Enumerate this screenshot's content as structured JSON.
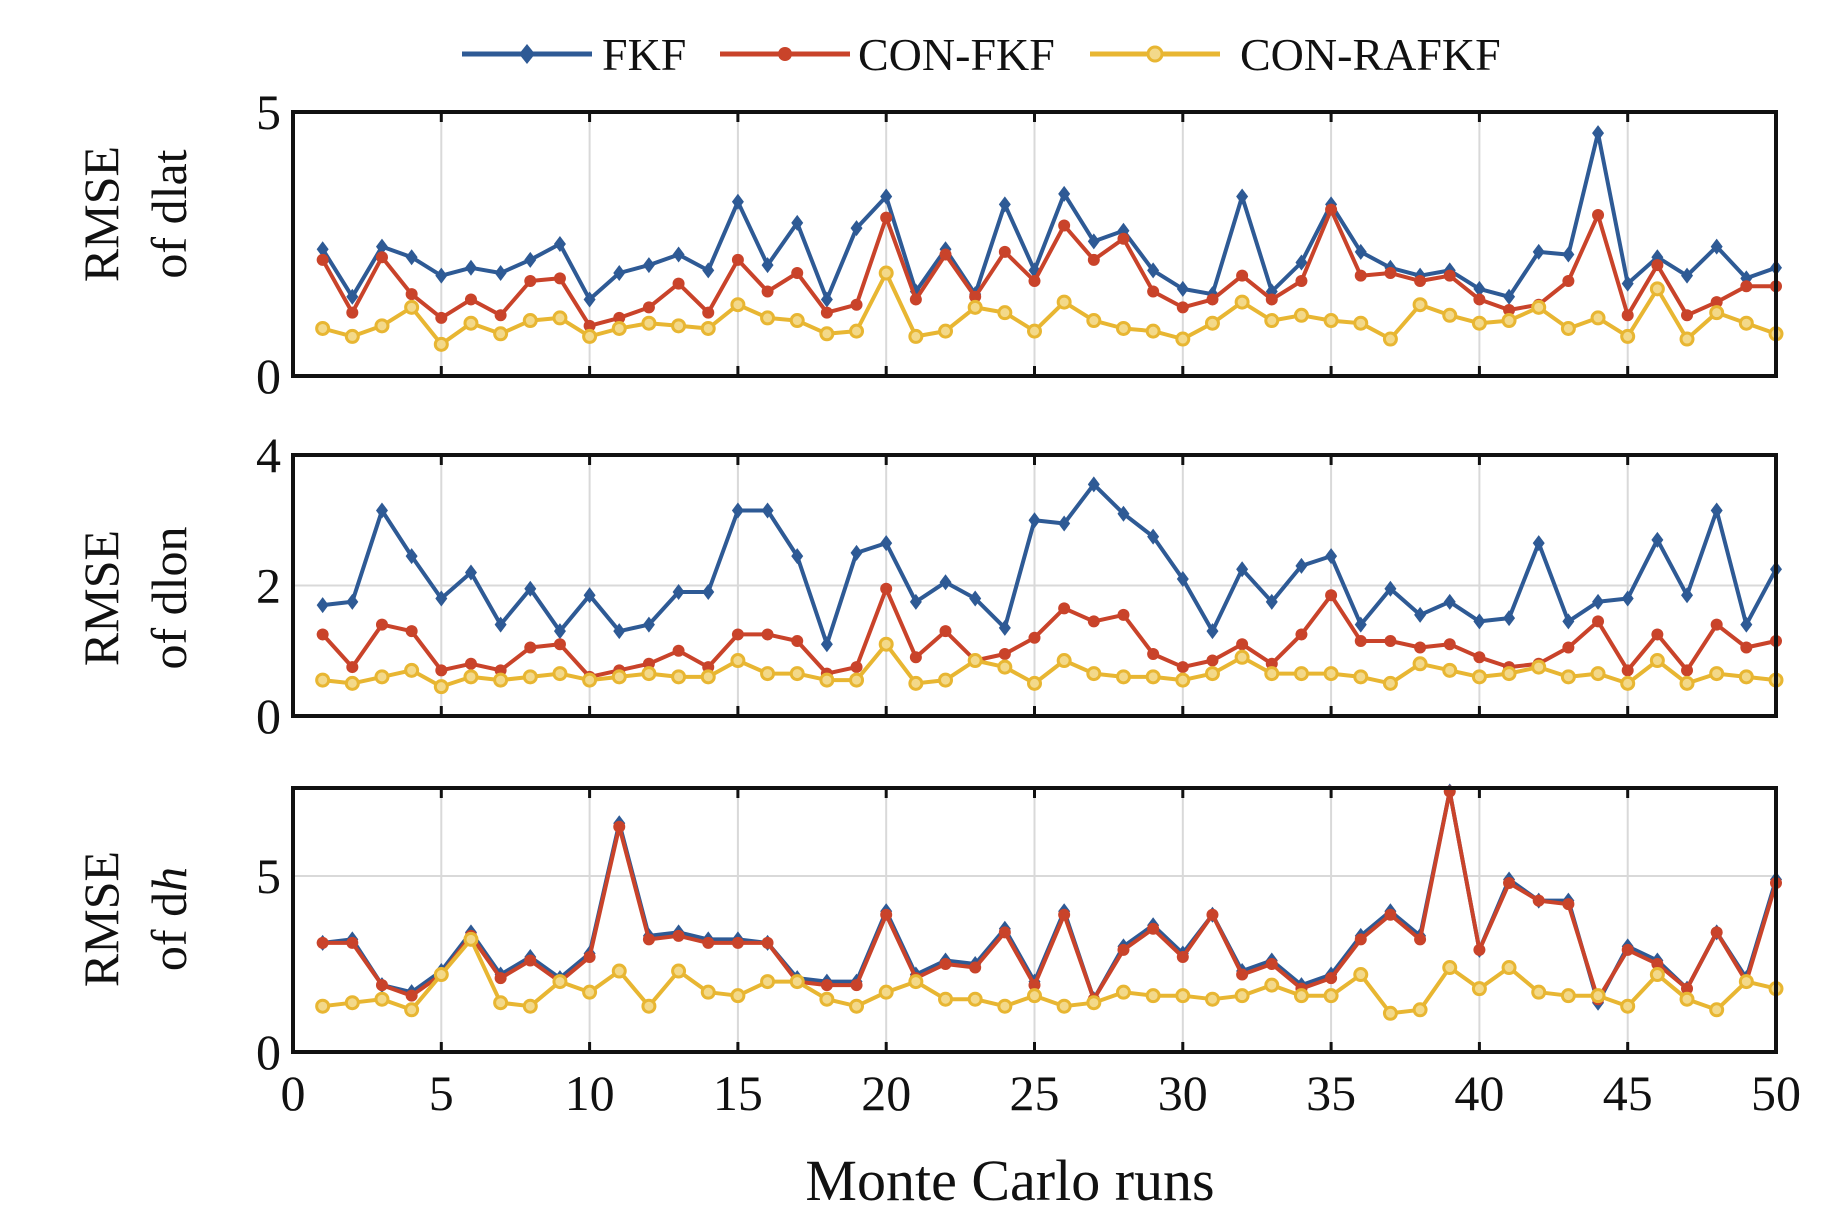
{
  "chart_data": [
    {
      "type": "line",
      "ylabel_line1": "RMSE",
      "ylabel_line2": "of dlat",
      "ylim": [
        0,
        5
      ],
      "yticks": [
        0,
        5
      ],
      "xlim": [
        0,
        50
      ],
      "series": [
        {
          "name": "FKF",
          "values": [
            2.4,
            1.5,
            2.45,
            2.25,
            1.9,
            2.05,
            1.95,
            2.2,
            2.5,
            1.45,
            1.95,
            2.1,
            2.3,
            2.0,
            3.3,
            2.1,
            2.9,
            1.45,
            2.8,
            3.4,
            1.6,
            2.4,
            1.55,
            3.25,
            2.0,
            3.45,
            2.55,
            2.75,
            2.0,
            1.65,
            1.55,
            3.4,
            1.6,
            2.15,
            3.25,
            2.35,
            2.05,
            1.9,
            2.0,
            1.65,
            1.5,
            2.35,
            2.3,
            4.6,
            1.75,
            2.25,
            1.9,
            2.45,
            1.85,
            2.05
          ]
        },
        {
          "name": "CON-FKF",
          "values": [
            2.2,
            1.2,
            2.25,
            1.55,
            1.1,
            1.45,
            1.15,
            1.8,
            1.85,
            0.95,
            1.1,
            1.3,
            1.75,
            1.2,
            2.2,
            1.6,
            1.95,
            1.2,
            1.35,
            3.0,
            1.45,
            2.3,
            1.5,
            2.35,
            1.8,
            2.85,
            2.2,
            2.6,
            1.6,
            1.3,
            1.45,
            1.9,
            1.45,
            1.8,
            3.15,
            1.9,
            1.95,
            1.8,
            1.9,
            1.45,
            1.25,
            1.35,
            1.8,
            3.05,
            1.15,
            2.1,
            1.15,
            1.4,
            1.7,
            1.7
          ]
        },
        {
          "name": "CON-RAFKF",
          "values": [
            0.9,
            0.75,
            0.95,
            1.3,
            0.6,
            1.0,
            0.8,
            1.05,
            1.1,
            0.75,
            0.9,
            1.0,
            0.95,
            0.9,
            1.35,
            1.1,
            1.05,
            0.8,
            0.85,
            1.95,
            0.75,
            0.85,
            1.3,
            1.2,
            0.85,
            1.4,
            1.05,
            0.9,
            0.85,
            0.7,
            1.0,
            1.4,
            1.05,
            1.15,
            1.05,
            1.0,
            0.7,
            1.35,
            1.15,
            1.0,
            1.05,
            1.3,
            0.9,
            1.1,
            0.75,
            1.65,
            0.7,
            1.2,
            1.0,
            0.8
          ]
        }
      ]
    },
    {
      "type": "line",
      "ylabel_line1": "RMSE",
      "ylabel_line2": "of dlon",
      "ylim": [
        0,
        4
      ],
      "yticks": [
        0,
        2,
        4
      ],
      "xlim": [
        0,
        50
      ],
      "series": [
        {
          "name": "FKF",
          "values": [
            1.7,
            1.75,
            3.15,
            2.45,
            1.8,
            2.2,
            1.4,
            1.95,
            1.3,
            1.85,
            1.3,
            1.4,
            1.9,
            1.9,
            3.15,
            3.15,
            2.45,
            1.1,
            2.5,
            2.65,
            1.75,
            2.05,
            1.8,
            1.35,
            3.0,
            2.95,
            3.55,
            3.1,
            2.75,
            2.1,
            1.3,
            2.25,
            1.75,
            2.3,
            2.45,
            1.4,
            1.95,
            1.55,
            1.75,
            1.45,
            1.5,
            2.65,
            1.45,
            1.75,
            1.8,
            2.7,
            1.85,
            3.15,
            1.4,
            2.25
          ]
        },
        {
          "name": "CON-FKF",
          "values": [
            1.25,
            0.75,
            1.4,
            1.3,
            0.7,
            0.8,
            0.7,
            1.05,
            1.1,
            0.6,
            0.7,
            0.8,
            1.0,
            0.75,
            1.25,
            1.25,
            1.15,
            0.65,
            0.75,
            1.95,
            0.9,
            1.3,
            0.85,
            0.95,
            1.2,
            1.65,
            1.45,
            1.55,
            0.95,
            0.75,
            0.85,
            1.1,
            0.8,
            1.25,
            1.85,
            1.15,
            1.15,
            1.05,
            1.1,
            0.9,
            0.75,
            0.8,
            1.05,
            1.45,
            0.7,
            1.25,
            0.7,
            1.4,
            1.05,
            1.15
          ]
        },
        {
          "name": "CON-RAFKF",
          "values": [
            0.55,
            0.5,
            0.6,
            0.7,
            0.45,
            0.6,
            0.55,
            0.6,
            0.65,
            0.55,
            0.6,
            0.65,
            0.6,
            0.6,
            0.85,
            0.65,
            0.65,
            0.55,
            0.55,
            1.1,
            0.5,
            0.55,
            0.85,
            0.75,
            0.5,
            0.85,
            0.65,
            0.6,
            0.6,
            0.55,
            0.65,
            0.9,
            0.65,
            0.65,
            0.65,
            0.6,
            0.5,
            0.8,
            0.7,
            0.6,
            0.65,
            0.75,
            0.6,
            0.65,
            0.5,
            0.85,
            0.5,
            0.65,
            0.6,
            0.55
          ]
        }
      ]
    },
    {
      "type": "line",
      "ylabel_line1": "RMSE",
      "ylabel_line2": "of d",
      "ylabel_line2_italic": "h",
      "ylim": [
        0,
        7.5
      ],
      "yticks": [
        0,
        5
      ],
      "xlim": [
        0,
        50
      ],
      "xticks": [
        0,
        5,
        10,
        15,
        20,
        25,
        30,
        35,
        40,
        45,
        50
      ],
      "xlabel": "Monte Carlo runs",
      "series": [
        {
          "name": "FKF",
          "values": [
            3.1,
            3.2,
            1.9,
            1.7,
            2.3,
            3.4,
            2.2,
            2.7,
            2.1,
            2.8,
            6.5,
            3.3,
            3.4,
            3.2,
            3.2,
            3.1,
            2.1,
            2.0,
            2.0,
            4.0,
            2.2,
            2.6,
            2.5,
            3.5,
            2.0,
            4.0,
            1.5,
            3.0,
            3.6,
            2.8,
            3.9,
            2.3,
            2.6,
            1.9,
            2.2,
            3.3,
            4.0,
            3.3,
            7.4,
            2.9,
            4.9,
            4.3,
            4.3,
            1.4,
            3.0,
            2.6,
            1.8,
            3.4,
            2.1,
            4.9
          ]
        },
        {
          "name": "CON-FKF",
          "values": [
            3.1,
            3.1,
            1.9,
            1.6,
            2.2,
            3.3,
            2.1,
            2.6,
            2.0,
            2.7,
            6.4,
            3.2,
            3.3,
            3.1,
            3.1,
            3.1,
            2.0,
            1.9,
            1.9,
            3.9,
            2.1,
            2.5,
            2.4,
            3.4,
            1.9,
            3.9,
            1.5,
            2.9,
            3.5,
            2.7,
            3.9,
            2.2,
            2.5,
            1.8,
            2.1,
            3.2,
            3.9,
            3.2,
            7.4,
            2.9,
            4.8,
            4.3,
            4.2,
            1.5,
            2.9,
            2.5,
            1.8,
            3.4,
            2.0,
            4.8
          ]
        },
        {
          "name": "CON-RAFKF",
          "values": [
            1.3,
            1.4,
            1.5,
            1.2,
            2.2,
            3.2,
            1.4,
            1.3,
            2.0,
            1.7,
            2.3,
            1.3,
            2.3,
            1.7,
            1.6,
            2.0,
            2.0,
            1.5,
            1.3,
            1.7,
            2.0,
            1.5,
            1.5,
            1.3,
            1.6,
            1.3,
            1.4,
            1.7,
            1.6,
            1.6,
            1.5,
            1.6,
            1.9,
            1.6,
            1.6,
            2.2,
            1.1,
            1.2,
            2.4,
            1.8,
            2.4,
            1.7,
            1.6,
            1.6,
            1.3,
            2.2,
            1.5,
            1.2,
            2.0,
            1.8
          ]
        }
      ]
    }
  ],
  "legend": [
    {
      "name": "FKF",
      "color": "#2e5a95",
      "marker": "diamond"
    },
    {
      "name": "CON-FKF",
      "color": "#c9432a",
      "marker": "circle"
    },
    {
      "name": "CON-RAFKF",
      "color": "#e8b632",
      "marker": "circle-open"
    }
  ]
}
